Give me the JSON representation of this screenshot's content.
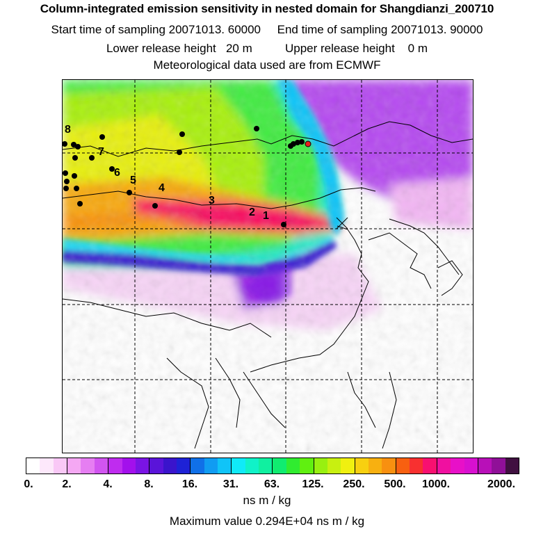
{
  "titles": {
    "main": "Column-integrated emission sensitivity in nested domain for Shangdianzi_200710",
    "sampling": "Start time of sampling 20071013. 60000     End time of sampling 20071013. 90000",
    "release": "Lower release height   20 m          Upper release height    0 m",
    "meteo": "Meteorological data used are from ECMWF"
  },
  "trajectory_labels": [
    "1",
    "2",
    "3",
    "4",
    "5",
    "6",
    "7",
    "8"
  ],
  "colorbar": {
    "colors": [
      "#ffffff",
      "#fde8fb",
      "#f9c8f6",
      "#f5a8f3",
      "#e67ef2",
      "#d155f0",
      "#bf2cef",
      "#a310ec",
      "#7a14e4",
      "#5a14d9",
      "#3a14cc",
      "#1e22d6",
      "#1070e8",
      "#109cf2",
      "#10c4f8",
      "#10eaf8",
      "#10f2c8",
      "#10f0a0",
      "#10ec70",
      "#30ec30",
      "#60f010",
      "#98f010",
      "#c8f010",
      "#f0f010",
      "#f8d010",
      "#f8b010",
      "#f89010",
      "#f86010",
      "#f83030",
      "#f81070",
      "#f010a0",
      "#e810c8",
      "#d810d0",
      "#b810b8",
      "#901098",
      "#401040"
    ],
    "tick_labels": [
      "0.",
      "2.",
      "4.",
      "8.",
      "16.",
      "31.",
      "63.",
      "125.",
      "250.",
      "500.",
      "1000.",
      "2000."
    ],
    "units": "ns m / kg"
  },
  "max_value_text": "Maximum value  0.294E+04 ns m / kg"
}
